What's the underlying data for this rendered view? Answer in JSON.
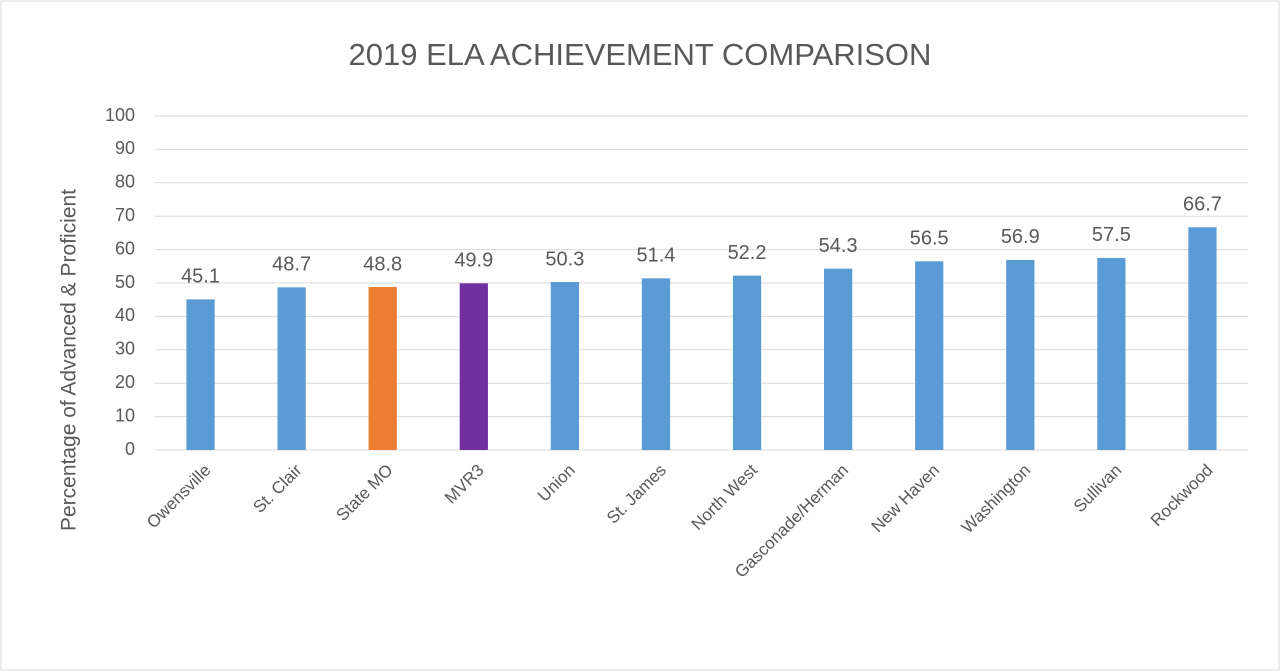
{
  "chart_data": {
    "type": "bar",
    "title": "2019 ELA ACHIEVEMENT COMPARISON",
    "y_label": "Percentage of Advanced & Proficient",
    "categories": [
      "Owensville",
      "St. Clair",
      "State MO",
      "MVR3",
      "Union",
      "St. James",
      "North West",
      "Gasconade/Herman",
      "New Haven",
      "Washington",
      "Sullivan",
      "Rockwood"
    ],
    "values": [
      45.1,
      48.7,
      48.8,
      49.9,
      50.3,
      51.4,
      52.2,
      54.3,
      56.5,
      56.9,
      57.5,
      66.7
    ],
    "colors": [
      "#5b9bd5",
      "#5b9bd5",
      "#ed7d31",
      "#7030a0",
      "#5b9bd5",
      "#5b9bd5",
      "#5b9bd5",
      "#5b9bd5",
      "#5b9bd5",
      "#5b9bd5",
      "#5b9bd5",
      "#5b9bd5"
    ],
    "ylim": [
      0,
      100
    ],
    "yticks": [
      0,
      10,
      20,
      30,
      40,
      50,
      60,
      70,
      80,
      90,
      100
    ],
    "grid": true
  }
}
